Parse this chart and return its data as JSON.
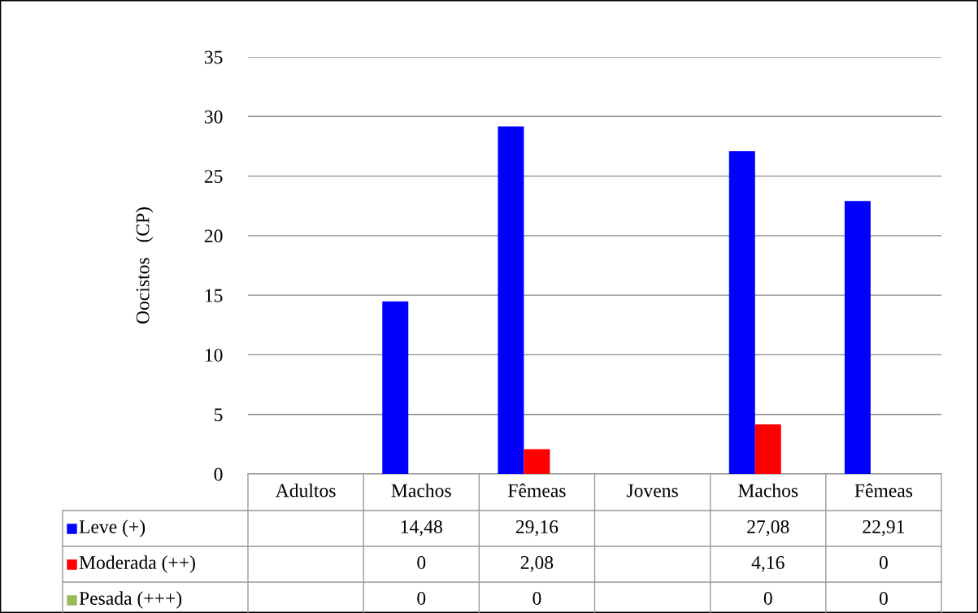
{
  "chart_data": {
    "type": "bar",
    "ylabel": "Oocistos   (CP)",
    "categories": [
      "Adultos",
      "Machos",
      "Fêmeas",
      "Jovens",
      "Machos",
      "Fêmeas"
    ],
    "series": [
      {
        "name": "Leve (+)",
        "color": "#0000ff",
        "values": [
          null,
          14.48,
          29.16,
          null,
          27.08,
          22.91
        ],
        "value_labels": [
          null,
          "14,48",
          "29,16",
          null,
          "27,08",
          "22,91"
        ]
      },
      {
        "name": "Moderada (++)",
        "color": "#ff0000",
        "values": [
          null,
          0,
          2.08,
          null,
          4.16,
          0
        ],
        "value_labels": [
          null,
          "0",
          "2,08",
          null,
          "4,16",
          "0"
        ]
      },
      {
        "name": "Pesada (+++)",
        "color": "#9bbb59",
        "values": [
          null,
          0,
          0,
          null,
          0,
          0
        ],
        "value_labels": [
          null,
          "0",
          "0",
          null,
          "0",
          "0"
        ]
      }
    ],
    "ylim": [
      0,
      35
    ],
    "yticks": [
      0,
      5,
      10,
      15,
      20,
      25,
      30,
      35
    ],
    "grid": "y",
    "legend": "bottom"
  }
}
